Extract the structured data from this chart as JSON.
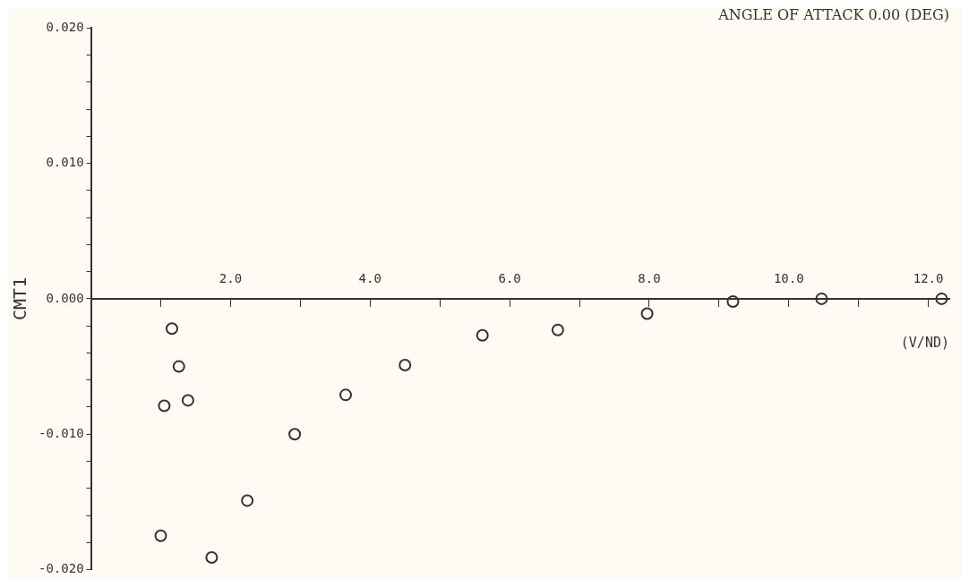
{
  "chart_data": {
    "type": "scatter",
    "title": "ANGLE OF ATTACK 0.00 (DEG)",
    "xlabel": "(V/ND)",
    "ylabel": "CMT1",
    "x": [
      1.16,
      1.26,
      1.05,
      1.39,
      3.65,
      2.92,
      2.24,
      1.0,
      1.73,
      4.5,
      5.61,
      6.69,
      7.97,
      9.2,
      10.47,
      12.19
    ],
    "series": [
      {
        "color": "#333333",
        "values": [
          -0.0022,
          -0.005,
          -0.0079,
          -0.0075,
          -0.0071,
          -0.01,
          -0.0149,
          -0.0175,
          -0.0191,
          -0.0049,
          -0.0027,
          -0.0023,
          -0.0011,
          -0.0002,
          0.0,
          0.0
        ]
      }
    ],
    "xlim": [
      0,
      12.3
    ],
    "xticks": [
      {
        "value": 1,
        "label": null
      },
      "2.0",
      {
        "value": 3,
        "label": null
      },
      {
        "value": 4,
        "label": "4.0"
      },
      {
        "value": 5,
        "label": null
      },
      {
        "value": 6,
        "label": "6.0"
      },
      {
        "value": 7,
        "label": null
      },
      {
        "value": 8,
        "label": "8.0"
      },
      {
        "value": 9,
        "label": null
      },
      {
        "value": 10,
        "label": "10.0"
      },
      {
        "value": 11,
        "label": null
      },
      {
        "value": 12,
        "label": "12.0"
      }
    ],
    "ylim": [
      -0.02,
      0.02
    ],
    "yticks": [
      {
        "value": -0.02,
        "label": "-0.020"
      },
      {
        "value": -0.018,
        "label": null
      },
      {
        "value": -0.016,
        "label": null
      },
      {
        "value": -0.014,
        "label": null
      },
      {
        "value": -0.012,
        "label": null
      },
      {
        "value": -0.01,
        "label": "-0.010"
      },
      {
        "value": -0.008,
        "label": null
      },
      {
        "value": -0.006,
        "label": null
      },
      {
        "value": -0.004,
        "label": null
      },
      {
        "value": -0.002,
        "label": null
      },
      {
        "value": 0,
        "label": "0.000"
      },
      {
        "value": 0.002,
        "label": null
      },
      {
        "value": 0.004,
        "label": null
      },
      {
        "value": 0.006,
        "label": null
      },
      {
        "value": 0.008,
        "label": null
      },
      {
        "value": 0.01,
        "label": "0.010"
      },
      {
        "value": 0.012,
        "label": null
      },
      {
        "value": 0.014,
        "label": null
      },
      {
        "value": 0.016,
        "label": null
      },
      {
        "value": 0.018,
        "label": null
      },
      {
        "value": 0.02,
        "label": "0.020"
      }
    ],
    "marker": "circle",
    "grid": false,
    "legend": false
  }
}
